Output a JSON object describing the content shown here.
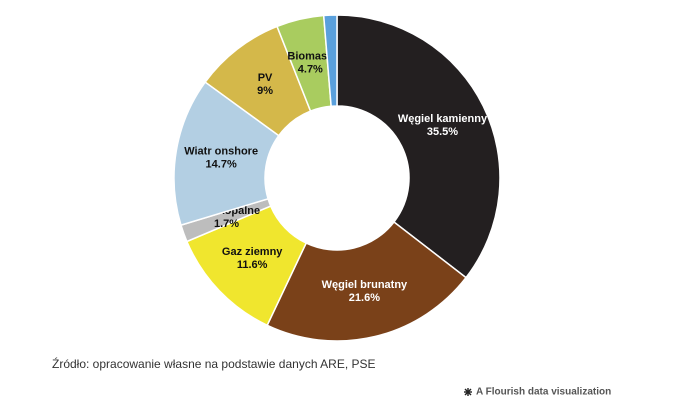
{
  "chart_data": {
    "type": "donut",
    "categories": [
      "Węgiel kamienny",
      "Węgiel brunatny",
      "Gaz ziemny",
      "Inne kopalne",
      "Wiatr onshore",
      "PV",
      "Biomasa",
      null
    ],
    "values": [
      35.5,
      21.6,
      11.6,
      1.7,
      14.7,
      9,
      4.7,
      1.3
    ],
    "value_labels": [
      "35.5%",
      "21.6%",
      "11.6%",
      "1.7%",
      "14.7%",
      "9%",
      "4.7%",
      null
    ],
    "colors": [
      "#231f20",
      "#7a4119",
      "#f0e62e",
      "#bdbdbd",
      "#b3cfe3",
      "#d4b84a",
      "#a9cc5f",
      "#5aa0dc"
    ],
    "source": "Źródło: opracowanie własne na podstawie danych ARE, PSE",
    "credit": "A Flourish data visualization"
  }
}
